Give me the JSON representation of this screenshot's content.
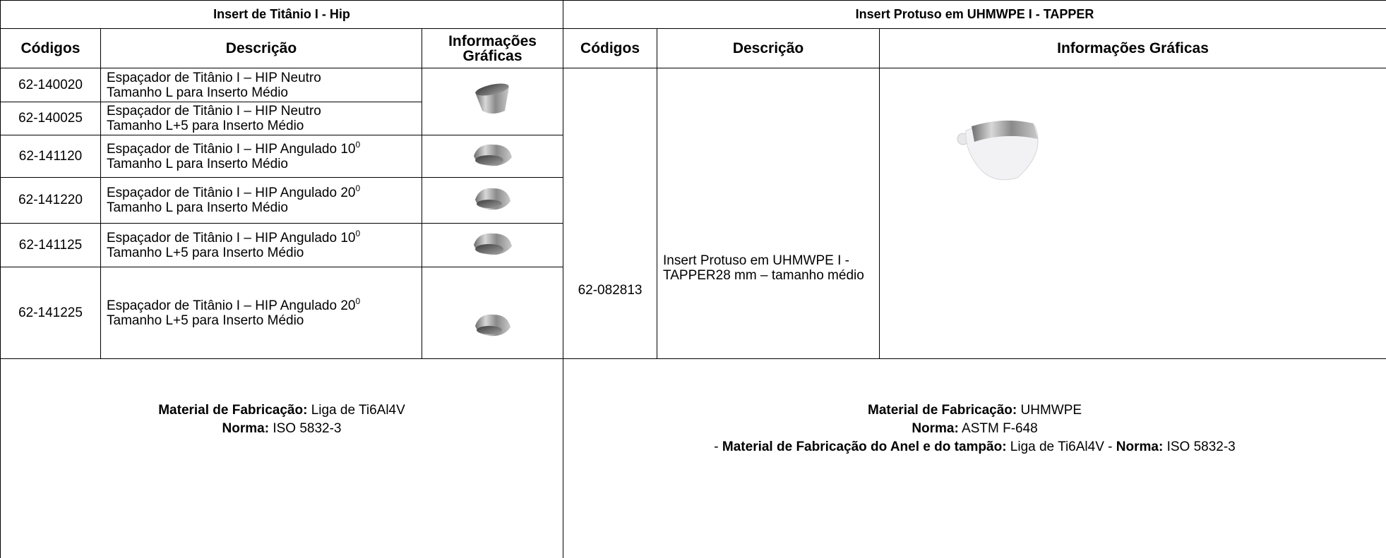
{
  "left": {
    "title": "Insert de Titânio I - Hip",
    "headers": [
      "Códigos",
      "Descrição",
      "Informações Gráficas"
    ],
    "rows": [
      {
        "code": "62-140020",
        "line1": "Espaçador de Titânio I – HIP Neutro",
        "line2": "Tamanho L para Inserto Médio"
      },
      {
        "code": "62-140025",
        "line1": "Espaçador de Titânio I – HIP Neutro",
        "line2": "Tamanho L+5 para Inserto Médio"
      },
      {
        "code": "62-141120",
        "line1": "Espaçador de Titânio I – HIP Angulado 10",
        "sup": "0",
        "line2": "Tamanho L para Inserto Médio"
      },
      {
        "code": "62-141220",
        "line1": "Espaçador de Titânio I – HIP Angulado 20",
        "sup": "0",
        "line2": "Tamanho L para Inserto Médio"
      },
      {
        "code": "62-141125",
        "line1": "Espaçador de Titânio I – HIP Angulado 10",
        "sup": "0",
        "line2": "Tamanho L+5 para Inserto Médio"
      },
      {
        "code": "62-141225",
        "line1": "Espaçador de Titânio I – HIP Angulado 20",
        "sup": "0",
        "line2": "Tamanho L+5 para Inserto Médio"
      }
    ],
    "footer": [
      [
        {
          "bold": "Material de Fabricação:"
        },
        {
          "text": " Liga de Ti6Al4V"
        }
      ],
      [
        {
          "bold": "Norma:"
        },
        {
          "text": " ISO 5832-3"
        }
      ]
    ]
  },
  "right": {
    "title": "Insert Protuso em UHMWPE I - TAPPER",
    "headers": [
      "Códigos",
      "Descrição",
      "Informações Gráficas"
    ],
    "code": "62-082813",
    "description": "Insert Protuso em UHMWPE I - TAPPER28 mm – tamanho médio",
    "footer": [
      [
        {
          "bold": "Material de Fabricação:"
        },
        {
          "text": " UHMWPE"
        }
      ],
      [
        {
          "bold": "Norma:"
        },
        {
          "text": " ASTM F-648"
        }
      ],
      [
        {
          "text": "- "
        },
        {
          "bold": "Material de Fabricação do Anel e do tampão:"
        },
        {
          "text": " Liga de Ti6Al4V - "
        },
        {
          "bold": "Norma:"
        },
        {
          "text": " ISO 5832-3"
        }
      ]
    ]
  }
}
